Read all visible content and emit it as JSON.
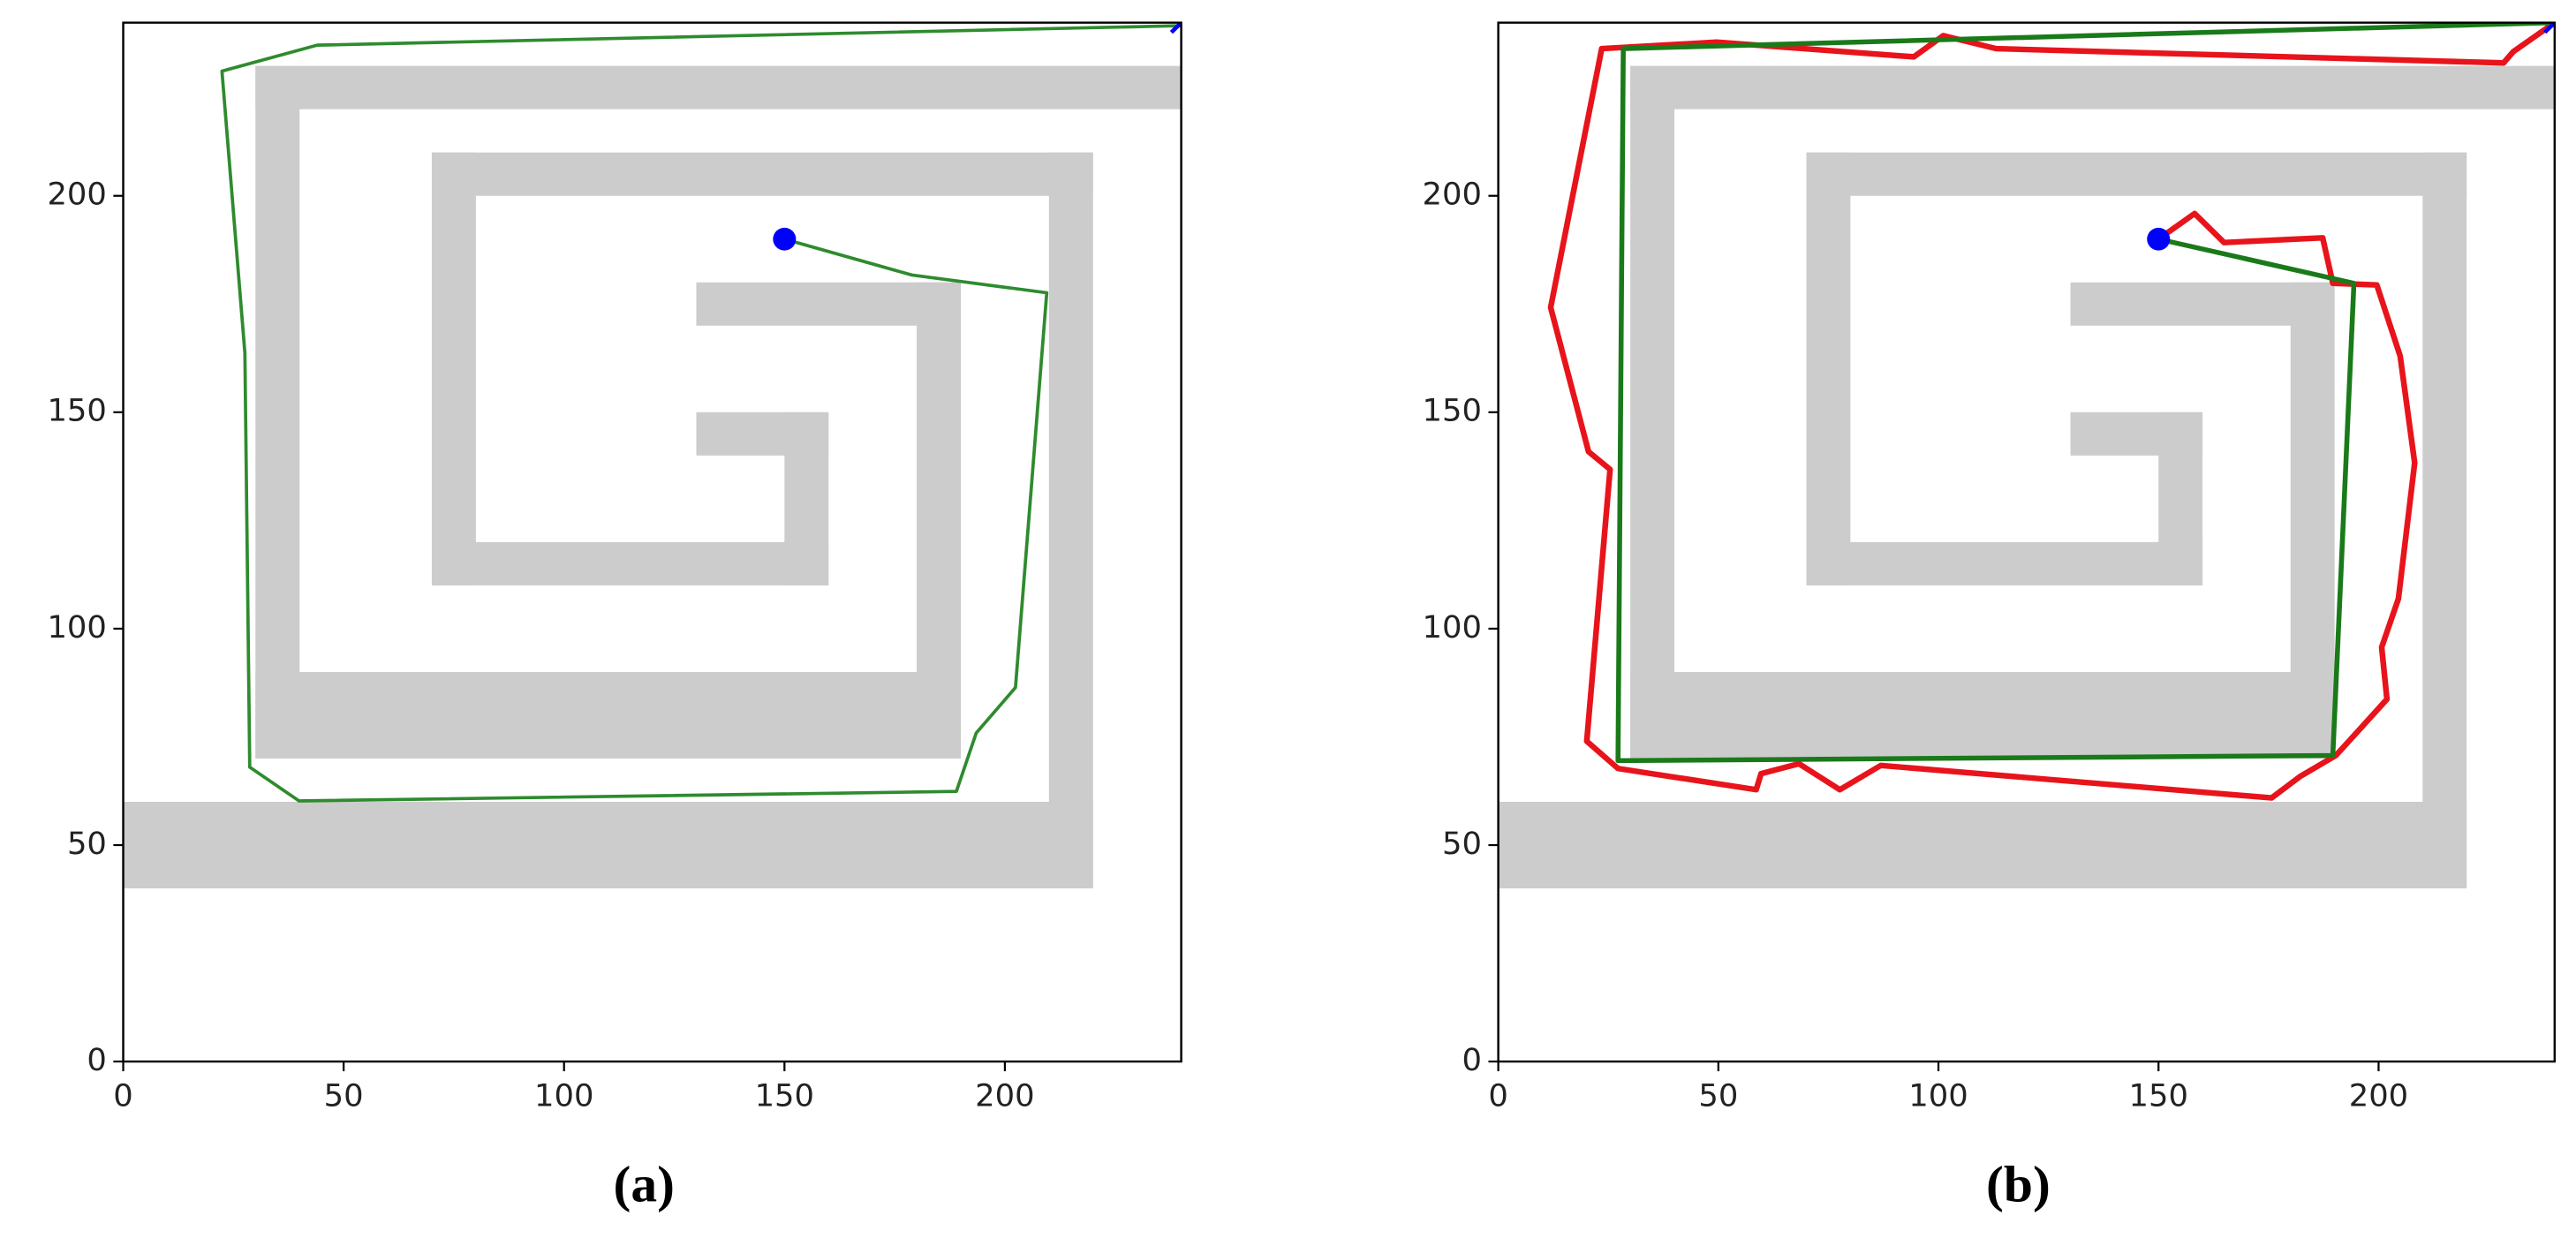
{
  "chart_data": [
    {
      "type": "line",
      "label": "(a)",
      "xlim": [
        0,
        240
      ],
      "ylim": [
        0,
        240
      ],
      "xticks": [
        0,
        50,
        100,
        150,
        200
      ],
      "yticks": [
        0,
        50,
        100,
        150,
        200
      ],
      "obstacle_color": "#cccccc",
      "obstacles": [
        [
          0,
          40,
          220,
          60
        ],
        [
          210,
          40,
          220,
          210
        ],
        [
          70,
          200,
          220,
          210
        ],
        [
          70,
          110,
          80,
          210
        ],
        [
          70,
          110,
          160,
          120
        ],
        [
          150,
          110,
          160,
          150
        ],
        [
          130,
          140,
          160,
          150
        ],
        [
          30,
          220,
          240,
          230
        ],
        [
          30,
          70,
          40,
          230
        ],
        [
          30,
          70,
          190,
          90
        ],
        [
          180,
          70,
          190,
          180
        ],
        [
          130,
          170,
          190,
          180
        ]
      ],
      "start": {
        "x": 150,
        "y": 190,
        "color": "#0000ff"
      },
      "goal": {
        "x": 240,
        "y": 240,
        "color": "#0000ff"
      },
      "series": [
        {
          "color": "#2e8b2e",
          "width": 2,
          "x": [
            240,
            44,
            22.4,
            27.6,
            28.7,
            39.9,
            189,
            193.5,
            202.4,
            209.5,
            178.9,
            150
          ],
          "values": [
            239.3,
            234.8,
            228.8,
            163.7,
            68,
            60.2,
            62.4,
            75.9,
            86.4,
            177.6,
            181.7,
            190
          ]
        }
      ]
    },
    {
      "type": "line",
      "label": "(b)",
      "xlim": [
        0,
        240
      ],
      "ylim": [
        0,
        240
      ],
      "xticks": [
        0,
        50,
        100,
        150,
        200
      ],
      "yticks": [
        0,
        50,
        100,
        150,
        200
      ],
      "obstacle_color": "#cccccc",
      "obstacles": [
        [
          0,
          40,
          220,
          60
        ],
        [
          210,
          40,
          220,
          210
        ],
        [
          70,
          200,
          220,
          210
        ],
        [
          70,
          110,
          80,
          210
        ],
        [
          70,
          110,
          160,
          120
        ],
        [
          150,
          110,
          160,
          150
        ],
        [
          130,
          140,
          160,
          150
        ],
        [
          30,
          220,
          240,
          230
        ],
        [
          30,
          70,
          40,
          230
        ],
        [
          30,
          70,
          190,
          90
        ],
        [
          180,
          70,
          190,
          180
        ],
        [
          130,
          170,
          190,
          180
        ]
      ],
      "start": {
        "x": 150,
        "y": 190,
        "color": "#0000ff"
      },
      "goal": {
        "x": 240,
        "y": 240,
        "color": "#0000ff"
      },
      "series": [
        {
          "color": "#e8141b",
          "width": 3.5,
          "x": [
            150,
            158.2,
            164.9,
            187.3,
            189.6,
            199.6,
            204.9,
            208.2,
            204.5,
            200.7,
            201.9,
            190.3,
            182.1,
            175.7,
            86.9,
            77.6,
            68.3,
            59.7,
            58.6,
            27.2,
            20.1,
            25.4,
            20.5,
            11.9,
            23.5,
            49.6,
            94.4,
            101.1,
            113.1,
            228.4,
            230.6,
            240
          ],
          "values": [
            190,
            195.9,
            189.2,
            190.3,
            179.8,
            179.4,
            163,
            138.3,
            106.9,
            95.7,
            83.7,
            70.7,
            65.8,
            60.9,
            68.4,
            62.8,
            68.8,
            66.5,
            62.8,
            67.7,
            74,
            136.8,
            140.9,
            174.2,
            234,
            235.5,
            232.1,
            237,
            234,
            230.7,
            233.3,
            240
          ]
        },
        {
          "color": "#1a7a1a",
          "width": 3,
          "x": [
            150,
            194.4,
            189.6,
            27.2,
            28.4,
            240
          ],
          "values": [
            190,
            179.8,
            70.7,
            69.5,
            234,
            240
          ]
        }
      ]
    }
  ]
}
